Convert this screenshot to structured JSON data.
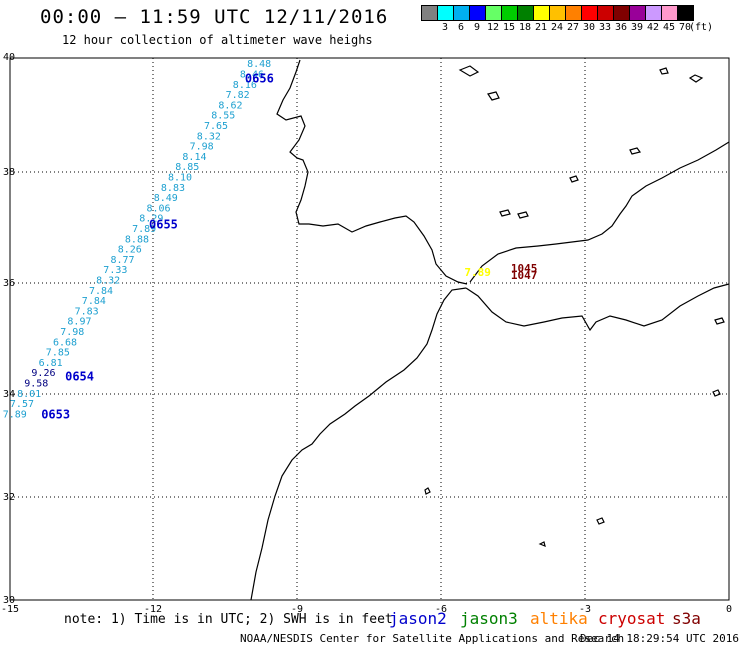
{
  "header": {
    "title": "00:00 – 11:59 UTC 12/11/2016",
    "subtitle": "12 hour collection of altimeter wave heighs"
  },
  "color_scale": {
    "colors": [
      "#808080",
      "#00ffff",
      "#00b0f0",
      "#0000ff",
      "#66ff66",
      "#00cc00",
      "#008000",
      "#ffff00",
      "#ffc000",
      "#ff8000",
      "#ff0000",
      "#cc0000",
      "#800000",
      "#990099",
      "#cc99ff",
      "#ff99cc",
      "#000000"
    ],
    "labels": [
      "3",
      "6",
      "9",
      "12",
      "15",
      "18",
      "21",
      "24",
      "27",
      "30",
      "33",
      "36",
      "39",
      "42",
      "45",
      "70",
      "(ft)"
    ]
  },
  "axes": {
    "lat_labels": [
      "40",
      "38",
      "36",
      "34",
      "32",
      "30"
    ],
    "lon_labels": [
      "-15",
      "-12",
      "-9",
      "-6",
      "-3",
      "0"
    ]
  },
  "track_values": [
    {
      "v": "8.48",
      "lat": 39.83
    },
    {
      "v": "8.46",
      "lat": 39.64
    },
    {
      "v": "8.16",
      "lat": 39.45
    },
    {
      "v": "7.82",
      "lat": 39.26
    },
    {
      "v": "8.62",
      "lat": 39.07
    },
    {
      "v": "8.55",
      "lat": 38.88
    },
    {
      "v": "7.65",
      "lat": 38.69
    },
    {
      "v": "8.32",
      "lat": 38.5
    },
    {
      "v": "7.98",
      "lat": 38.31
    },
    {
      "v": "8.14",
      "lat": 38.12
    },
    {
      "v": "8.85",
      "lat": 37.93
    },
    {
      "v": "8.10",
      "lat": 37.74
    },
    {
      "v": "8.83",
      "lat": 37.55
    },
    {
      "v": "8.49",
      "lat": 37.36
    },
    {
      "v": "8.06",
      "lat": 37.17
    },
    {
      "v": "8.29",
      "lat": 36.98
    },
    {
      "v": "7.89",
      "lat": 36.79
    },
    {
      "v": "8.88",
      "lat": 36.6
    },
    {
      "v": "8.26",
      "lat": 36.41
    },
    {
      "v": "8.77",
      "lat": 36.22
    },
    {
      "v": "7.33",
      "lat": 36.03
    },
    {
      "v": "8.32",
      "lat": 35.84
    },
    {
      "v": "7.84",
      "lat": 35.65
    },
    {
      "v": "7.84",
      "lat": 35.46
    },
    {
      "v": "7.83",
      "lat": 35.27
    },
    {
      "v": "8.97",
      "lat": 35.08
    },
    {
      "v": "7.98",
      "lat": 34.89
    },
    {
      "v": "6.68",
      "lat": 34.7
    },
    {
      "v": "7.85",
      "lat": 34.51
    },
    {
      "v": "6.81",
      "lat": 34.32
    },
    {
      "v": "9.26",
      "lat": 34.13,
      "dark": true
    },
    {
      "v": "9.58",
      "lat": 33.94,
      "dark": true
    },
    {
      "v": "8.01",
      "lat": 33.75
    },
    {
      "v": "7.57",
      "lat": 33.56
    },
    {
      "v": "7.89",
      "lat": 33.37
    }
  ],
  "time_labels": [
    {
      "text": "0656",
      "lon": -10.1,
      "lat": 39.55
    },
    {
      "text": "0655",
      "lon": -12.1,
      "lat": 36.85
    },
    {
      "text": "0654",
      "lon": -13.85,
      "lat": 34.05
    },
    {
      "text": "0653",
      "lon": -14.35,
      "lat": 33.35
    }
  ],
  "med_labels": [
    {
      "text": "7.89",
      "lon": -5.52,
      "lat": 35.98,
      "color": "#ffff00"
    },
    {
      "text": "1045",
      "lon": -4.55,
      "lat": 36.05,
      "color": "#800000"
    },
    {
      "text": "1047",
      "lon": -4.55,
      "lat": 35.92,
      "color": "#800000"
    }
  ],
  "footer": {
    "note": "note: 1) Time is in UTC; 2) SWH is in feet",
    "satellites": [
      {
        "name": "jason2",
        "color": "#0000cc"
      },
      {
        "name": "jason3",
        "color": "#008000"
      },
      {
        "name": "altika",
        "color": "#ff8000"
      },
      {
        "name": "cryosat",
        "color": "#cc0000"
      },
      {
        "name": "s3a",
        "color": "#800000"
      }
    ],
    "credit": "NOAA/NESDIS Center for Satellite Applications and Research",
    "timestamp": "Dec 14 18:29:54 UTC 2016"
  }
}
